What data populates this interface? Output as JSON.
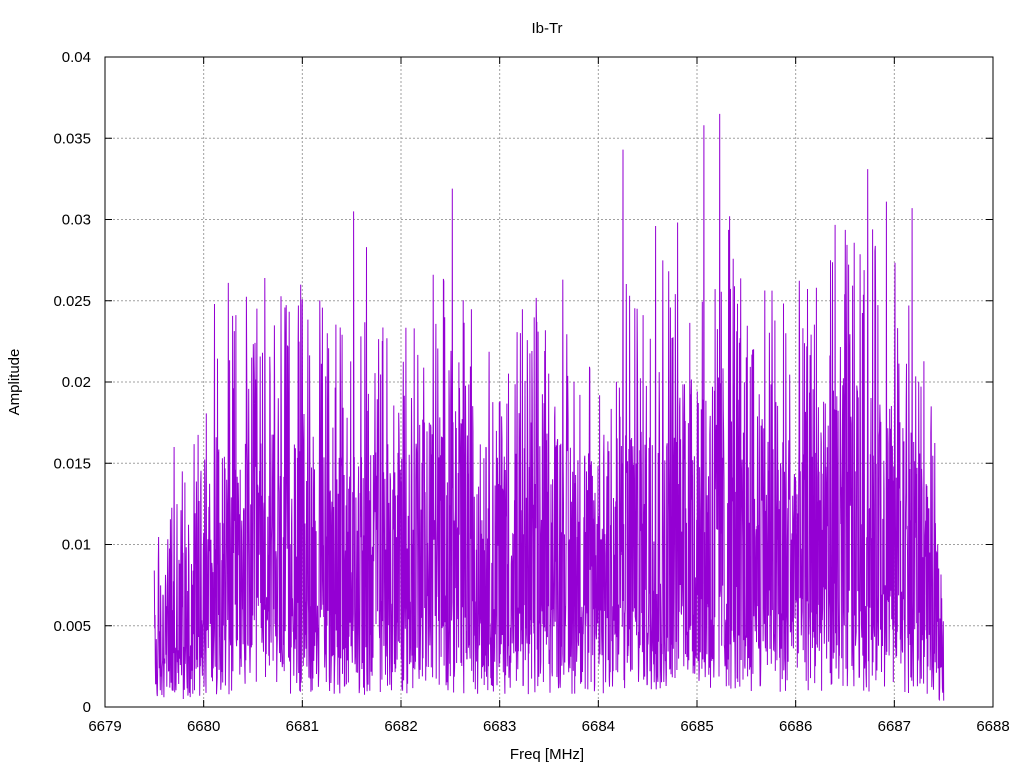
{
  "chart_data": {
    "type": "line",
    "title": "Ib-Tr",
    "xlabel": "Freq [MHz]",
    "ylabel": "Amplitude",
    "xlim": [
      6679,
      6688
    ],
    "ylim": [
      0,
      0.04
    ],
    "x_ticks": [
      "6679",
      "6680",
      "6681",
      "6682",
      "6683",
      "6684",
      "6685",
      "6686",
      "6687",
      "6688"
    ],
    "y_ticks": [
      "0",
      "0.005",
      "0.01",
      "0.015",
      "0.02",
      "0.025",
      "0.03",
      "0.035",
      "0.04"
    ],
    "grid": true,
    "series": [
      {
        "color": "#9400d3",
        "x_range": [
          6679.5,
          6687.5
        ],
        "baseline_profile": [
          {
            "x": 6679.5,
            "y": 0.004
          },
          {
            "x": 6679.8,
            "y": 0.006
          },
          {
            "x": 6680.0,
            "y": 0.009
          },
          {
            "x": 6680.5,
            "y": 0.01
          },
          {
            "x": 6681.0,
            "y": 0.01
          },
          {
            "x": 6681.5,
            "y": 0.009
          },
          {
            "x": 6682.0,
            "y": 0.01
          },
          {
            "x": 6682.5,
            "y": 0.011
          },
          {
            "x": 6683.0,
            "y": 0.009
          },
          {
            "x": 6683.5,
            "y": 0.01
          },
          {
            "x": 6684.0,
            "y": 0.009
          },
          {
            "x": 6684.5,
            "y": 0.011
          },
          {
            "x": 6685.0,
            "y": 0.012
          },
          {
            "x": 6685.5,
            "y": 0.011
          },
          {
            "x": 6686.0,
            "y": 0.01
          },
          {
            "x": 6686.5,
            "y": 0.012
          },
          {
            "x": 6687.0,
            "y": 0.011
          },
          {
            "x": 6687.3,
            "y": 0.009
          },
          {
            "x": 6687.5,
            "y": 0.004
          }
        ],
        "peaks": [
          {
            "x": 6679.7,
            "y": 0.016
          },
          {
            "x": 6680.11,
            "y": 0.0248
          },
          {
            "x": 6680.25,
            "y": 0.0261
          },
          {
            "x": 6680.62,
            "y": 0.0264
          },
          {
            "x": 6681.0,
            "y": 0.0251
          },
          {
            "x": 6681.52,
            "y": 0.0305
          },
          {
            "x": 6681.65,
            "y": 0.0283
          },
          {
            "x": 6682.52,
            "y": 0.0319
          },
          {
            "x": 6683.64,
            "y": 0.0263
          },
          {
            "x": 6684.25,
            "y": 0.0343
          },
          {
            "x": 6684.58,
            "y": 0.0296
          },
          {
            "x": 6685.07,
            "y": 0.0358
          },
          {
            "x": 6685.23,
            "y": 0.0365
          },
          {
            "x": 6685.33,
            "y": 0.0302
          },
          {
            "x": 6686.73,
            "y": 0.0331
          },
          {
            "x": 6686.92,
            "y": 0.0311
          },
          {
            "x": 6687.18,
            "y": 0.0307
          }
        ]
      }
    ]
  }
}
